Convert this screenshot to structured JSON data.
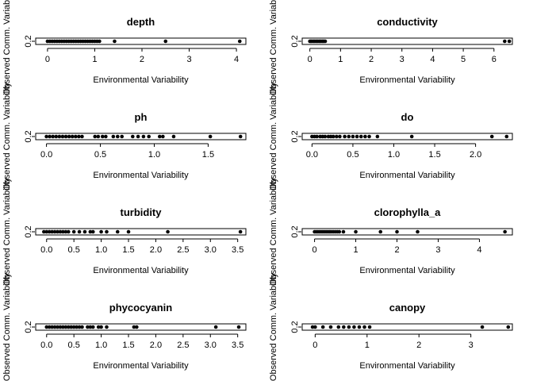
{
  "chart_data": [
    {
      "type": "scatter",
      "title": "depth",
      "xlabel": "Environmental Variability",
      "ylabel": "Observed Comm. Variability",
      "yticks": [
        "0.2"
      ],
      "xlim": [
        -0.25,
        4.2
      ],
      "xticks": [
        0,
        1,
        2,
        3,
        4
      ],
      "y": 0.2,
      "x": [
        0,
        0.05,
        0.1,
        0.15,
        0.2,
        0.25,
        0.3,
        0.35,
        0.4,
        0.45,
        0.5,
        0.55,
        0.6,
        0.65,
        0.7,
        0.75,
        0.8,
        0.85,
        0.9,
        0.95,
        1.0,
        1.05,
        1.1,
        1.42,
        2.5,
        4.07
      ]
    },
    {
      "type": "scatter",
      "title": "conductivity",
      "xlabel": "Environmental Variability",
      "ylabel": "Observed Comm. Variability",
      "yticks": [
        "0.2"
      ],
      "xlim": [
        -0.25,
        6.6
      ],
      "xticks": [
        0,
        1,
        2,
        3,
        4,
        5,
        6
      ],
      "y": 0.2,
      "x": [
        0,
        0.03,
        0.06,
        0.1,
        0.13,
        0.16,
        0.2,
        0.23,
        0.26,
        0.3,
        0.33,
        0.36,
        0.4,
        0.43,
        0.46,
        0.5,
        6.35,
        6.5
      ]
    },
    {
      "type": "scatter",
      "title": "ph",
      "xlabel": "Environmental Variability",
      "ylabel": "Observed Comm. Variability",
      "yticks": [
        "0.2"
      ],
      "xlim": [
        -0.1,
        1.85
      ],
      "xticks": [
        0,
        0.5,
        1,
        1.5
      ],
      "xticklabels": [
        "0.0",
        "0.5",
        "1.0",
        "1.5"
      ],
      "y": 0.2,
      "x": [
        0.0,
        0.03,
        0.06,
        0.09,
        0.12,
        0.15,
        0.18,
        0.21,
        0.24,
        0.27,
        0.3,
        0.33,
        0.45,
        0.48,
        0.52,
        0.55,
        0.62,
        0.66,
        0.7,
        0.8,
        0.85,
        0.9,
        0.95,
        1.05,
        1.08,
        1.18,
        1.52,
        1.8
      ]
    },
    {
      "type": "scatter",
      "title": "do",
      "xlabel": "Environmental Variability",
      "ylabel": "Observed Comm. Variability",
      "yticks": [
        "0.2"
      ],
      "xlim": [
        -0.12,
        2.45
      ],
      "xticks": [
        0,
        0.5,
        1,
        1.5,
        2
      ],
      "xticklabels": [
        "0.0",
        "0.5",
        "1.0",
        "1.5",
        "2.0"
      ],
      "y": 0.2,
      "x": [
        0.0,
        0.03,
        0.06,
        0.1,
        0.13,
        0.16,
        0.2,
        0.23,
        0.26,
        0.3,
        0.34,
        0.4,
        0.45,
        0.5,
        0.55,
        0.6,
        0.65,
        0.7,
        0.8,
        1.22,
        2.2,
        2.38
      ]
    },
    {
      "type": "scatter",
      "title": "turbidity",
      "xlabel": "Environmental Variability",
      "ylabel": "Observed Comm. Variability",
      "yticks": [
        "0.2"
      ],
      "xlim": [
        -0.2,
        3.65
      ],
      "xticks": [
        0,
        0.5,
        1,
        1.5,
        2,
        2.5,
        3,
        3.5
      ],
      "xticklabels": [
        "0.0",
        "0.5",
        "1.0",
        "1.5",
        "2.0",
        "2.5",
        "3.0",
        "3.5"
      ],
      "y": 0.2,
      "x": [
        -0.05,
        0.0,
        0.05,
        0.1,
        0.15,
        0.2,
        0.25,
        0.3,
        0.35,
        0.4,
        0.5,
        0.6,
        0.7,
        0.8,
        0.85,
        1.0,
        1.1,
        1.3,
        1.5,
        2.22,
        3.55
      ]
    },
    {
      "type": "scatter",
      "title": "clorophylla_a",
      "xlabel": "Environmental Variability",
      "ylabel": "Observed Comm. Variability",
      "yticks": [
        "0.2"
      ],
      "xlim": [
        -0.3,
        4.8
      ],
      "xticks": [
        0,
        1,
        2,
        3,
        4
      ],
      "y": 0.2,
      "x": [
        0.0,
        0.04,
        0.08,
        0.12,
        0.16,
        0.2,
        0.24,
        0.28,
        0.32,
        0.36,
        0.4,
        0.45,
        0.5,
        0.55,
        0.6,
        0.7,
        1.0,
        1.6,
        2.0,
        2.5,
        4.62
      ]
    },
    {
      "type": "scatter",
      "title": "phycocyanin",
      "xlabel": "Environmental Variability",
      "ylabel": "Observed Comm. Variability",
      "yticks": [
        "0.2"
      ],
      "xlim": [
        -0.2,
        3.65
      ],
      "xticks": [
        0,
        0.5,
        1,
        1.5,
        2,
        2.5,
        3,
        3.5
      ],
      "xticklabels": [
        "0.0",
        "0.5",
        "1.0",
        "1.5",
        "2.0",
        "2.5",
        "3.0",
        "3.5"
      ],
      "y": 0.2,
      "x": [
        0.0,
        0.05,
        0.1,
        0.15,
        0.2,
        0.25,
        0.3,
        0.35,
        0.4,
        0.45,
        0.5,
        0.55,
        0.6,
        0.65,
        0.75,
        0.8,
        0.85,
        0.95,
        1.0,
        1.1,
        1.6,
        1.65,
        3.1,
        3.52
      ]
    },
    {
      "type": "scatter",
      "title": "canopy",
      "xlabel": "Environmental Variability",
      "ylabel": "Observed Comm. Variability",
      "yticks": [
        "0.2"
      ],
      "xlim": [
        -0.25,
        3.8
      ],
      "xticks": [
        0,
        1,
        2,
        3
      ],
      "y": 0.2,
      "x": [
        -0.05,
        0.0,
        0.15,
        0.3,
        0.45,
        0.55,
        0.65,
        0.75,
        0.85,
        0.95,
        1.05,
        3.22,
        3.72
      ]
    }
  ]
}
